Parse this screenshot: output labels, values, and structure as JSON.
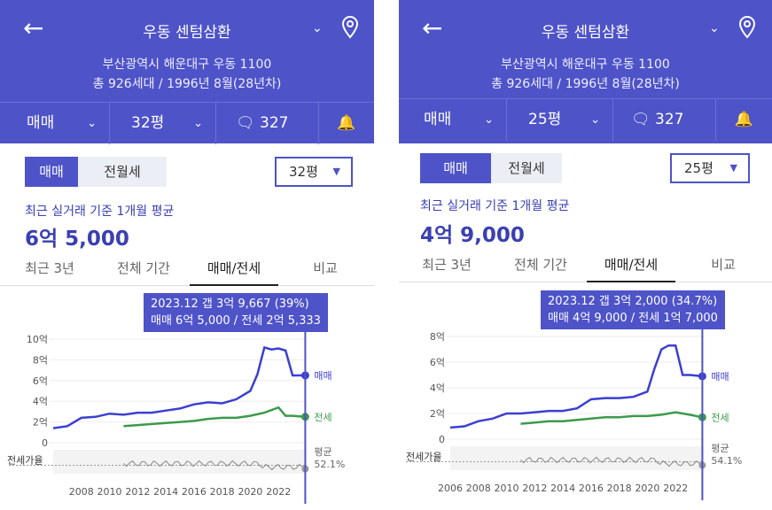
{
  "panels": [
    {
      "title": "우동 센텀삼환",
      "address": "부산광역시 해운대구 우동 1100",
      "info": "총 926세대 / 1996년 8월(28년차)",
      "trade_type": "매매",
      "size": "32평",
      "comment_count": "327",
      "seg_sale": "매매",
      "seg_rent": "전월세",
      "size_select": "32평",
      "subtitle": "최근 실거래 기준 1개월 평균",
      "price": "6억 5,000",
      "period_tabs": [
        "최근 3년",
        "전체 기간",
        "매매/전세",
        "비교"
      ],
      "active_tab": 2,
      "tooltip_line1": "2023.12  갭 3억 9,667 (39%)",
      "tooltip_line2": "매매 6억 5,000 / 전세 2억 5,333",
      "chart_data": {
        "type": "line",
        "y_ticks": [
          "10억",
          "8억",
          "6억",
          "4억",
          "2억",
          "0"
        ],
        "x_ticks": [
          "2008",
          "2010",
          "2012",
          "2014",
          "2016",
          "2018",
          "2020",
          "2022"
        ],
        "ylim": [
          0,
          10
        ],
        "series": [
          {
            "name": "매매",
            "color": "#3b3fd1",
            "x": [
              2006.0,
              2007,
              2008,
              2009,
              2010,
              2011,
              2012,
              2013,
              2014,
              2015,
              2016,
              2017,
              2018,
              2019,
              2020,
              2020.5,
              2021,
              2021.5,
              2022,
              2022.5,
              2023,
              2023.9
            ],
            "y": [
              1.4,
              1.6,
              2.4,
              2.5,
              2.8,
              2.7,
              2.9,
              2.9,
              3.1,
              3.3,
              3.7,
              3.9,
              3.8,
              4.2,
              5.0,
              6.6,
              9.2,
              9.0,
              9.1,
              8.9,
              6.5,
              6.5
            ]
          },
          {
            "name": "전세",
            "color": "#3c9a4a",
            "x": [
              2011,
              2012,
              2013,
              2014,
              2015,
              2016,
              2017,
              2018,
              2019,
              2020,
              2021,
              2022,
              2022.5,
              2023,
              2023.9
            ],
            "y": [
              1.6,
              1.7,
              1.8,
              1.9,
              2.0,
              2.1,
              2.3,
              2.4,
              2.4,
              2.6,
              2.9,
              3.4,
              2.6,
              2.6,
              2.5
            ]
          }
        ],
        "ratio_label": "전세가율",
        "avg_label": "평균",
        "avg_value": "52.1%",
        "legend_sale": "매매",
        "legend_rent": "전세"
      }
    },
    {
      "title": "우동 센텀삼환",
      "address": "부산광역시 해운대구 우동 1100",
      "info": "총 926세대 / 1996년 8월(28년차)",
      "trade_type": "매매",
      "size": "25평",
      "comment_count": "327",
      "seg_sale": "매매",
      "seg_rent": "전월세",
      "size_select": "25평",
      "subtitle": "최근 실거래 기준 1개월 평균",
      "price": "4억 9,000",
      "period_tabs": [
        "최근 3년",
        "전체 기간",
        "매매/전세",
        "비교"
      ],
      "active_tab": 2,
      "tooltip_line1": "2023.12  갭 3억 2,000 (34.7%)",
      "tooltip_line2": "매매 4억 9,000 / 전세 1억 7,000",
      "chart_data": {
        "type": "line",
        "y_ticks": [
          "8억",
          "6억",
          "4억",
          "2억",
          "0"
        ],
        "x_ticks": [
          "2006",
          "2008",
          "2010",
          "2012",
          "2014",
          "2016",
          "2018",
          "2020",
          "2022"
        ],
        "ylim": [
          0,
          8
        ],
        "series": [
          {
            "name": "매매",
            "color": "#3b3fd1",
            "x": [
              2006.0,
              2007,
              2008,
              2009,
              2010,
              2011,
              2012,
              2013,
              2014,
              2015,
              2016,
              2017,
              2018,
              2019,
              2020,
              2020.5,
              2021,
              2021.5,
              2022,
              2022.5,
              2023,
              2023.9
            ],
            "y": [
              0.9,
              1.0,
              1.4,
              1.6,
              2.0,
              2.0,
              2.1,
              2.2,
              2.2,
              2.4,
              3.1,
              3.2,
              3.2,
              3.3,
              3.7,
              5.5,
              7.0,
              7.3,
              7.3,
              5.0,
              5.0,
              4.9
            ]
          },
          {
            "name": "전세",
            "color": "#3c9a4a",
            "x": [
              2011,
              2012,
              2013,
              2014,
              2015,
              2016,
              2017,
              2018,
              2019,
              2020,
              2021,
              2022,
              2023,
              2023.9
            ],
            "y": [
              1.2,
              1.3,
              1.4,
              1.4,
              1.5,
              1.6,
              1.7,
              1.7,
              1.8,
              1.8,
              1.9,
              2.1,
              1.9,
              1.7
            ]
          }
        ],
        "ratio_label": "전세가율",
        "avg_label": "평균",
        "avg_value": "54.1%",
        "legend_sale": "매매",
        "legend_rent": "전세"
      }
    }
  ]
}
